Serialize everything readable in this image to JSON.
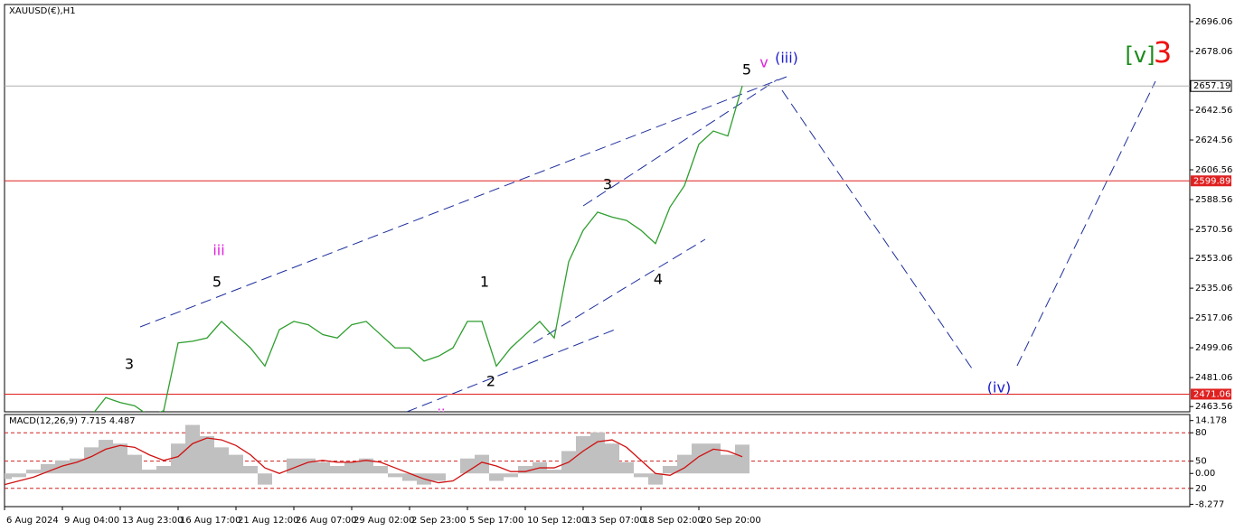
{
  "chart_data": [
    {
      "type": "line",
      "title": "XAUUSD(€),H1",
      "color": "#2e9e2e",
      "categories": [
        "6 Aug 2024",
        null,
        null,
        null,
        "9 Aug 04:00",
        null,
        null,
        null,
        "13 Aug 23:00",
        null,
        null,
        null,
        "16 Aug 17:00",
        null,
        null,
        null,
        "21 Aug 12:00",
        null,
        null,
        null,
        "26 Aug 07:00",
        null,
        null,
        null,
        "29 Aug 02:00",
        null,
        null,
        null,
        "2 Sep 23:00",
        null,
        null,
        null,
        "5 Sep 17:00",
        null,
        null,
        null,
        "10 Sep 12:00",
        null,
        null,
        null,
        "13 Sep 07:00",
        null,
        null,
        null,
        "18 Sep 02:00",
        null,
        null,
        null,
        "20 Sep 20:00",
        null,
        null,
        null
      ],
      "values": [
        2452.7,
        2452,
        2452,
        2455,
        2455,
        2455,
        2458,
        2469,
        2466,
        2464,
        2458,
        2461,
        2502,
        2503,
        2505,
        2515,
        2507,
        2499,
        2488,
        2510,
        2515,
        2513,
        2507,
        2505,
        2513,
        2515,
        2507,
        2499,
        2499,
        2491,
        2494,
        2499,
        2515,
        2515,
        2488,
        2499,
        2507,
        2515,
        2505,
        2551,
        2570,
        2581,
        2578,
        2576,
        2570,
        2562,
        2584,
        2597,
        2622,
        2630,
        2627,
        2657.19
      ],
      "ylim": [
        2460.4,
        2706.4
      ],
      "yticks": [
        2696.06,
        2678.06,
        2642.56,
        2624.56,
        2606.56,
        2588.56,
        2570.56,
        2553.06,
        2535.06,
        2517.06,
        2499.06,
        2481.06,
        2463.56
      ],
      "levels": [
        {
          "value": 2599.89,
          "color": "#e02020"
        },
        {
          "value": 2471.06,
          "color": "#e02020"
        }
      ],
      "last_price": 2657.19,
      "annotations": [
        {
          "text": "3",
          "color": "#000000"
        },
        {
          "text": "5",
          "color": "#000000"
        },
        {
          "text": "iii",
          "color": "#e020e0"
        },
        {
          "text": "1",
          "color": "#000000"
        },
        {
          "text": "2",
          "color": "#000000"
        },
        {
          "text": "3",
          "color": "#000000"
        },
        {
          "text": "4",
          "color": "#000000"
        },
        {
          "text": "5",
          "color": "#000000"
        },
        {
          "text": "v",
          "color": "#e020e0"
        },
        {
          "text": "(iii)",
          "color": "#1a1acc"
        },
        {
          "text": "[v]",
          "color": "#1a8a1a"
        },
        {
          "text": "3",
          "color": "#ee1111"
        },
        {
          "text": "(iv)",
          "color": "#1a1acc"
        },
        {
          "text": "ii",
          "color": "#e020e0"
        }
      ]
    },
    {
      "type": "macd",
      "title": "MACD(12,26,9) 7.715 4.487",
      "series": [
        {
          "name": "MACD",
          "color": "#c0c0c0",
          "values": [
            -1.5,
            -1,
            1,
            2.5,
            3.5,
            4,
            7,
            9,
            8,
            5,
            1,
            2,
            8,
            13,
            10,
            7,
            5,
            2,
            -3,
            0,
            4,
            4,
            3,
            2,
            3,
            4,
            2,
            -1,
            -2,
            -3,
            -2,
            0,
            4,
            5,
            -2,
            -1,
            2,
            3,
            1,
            6,
            10,
            11,
            8,
            3,
            -1,
            -3,
            2,
            5,
            8,
            8,
            5,
            7.715
          ]
        },
        {
          "name": "Signal",
          "color": "#d01010",
          "values": [
            -3,
            -2,
            -1,
            0.5,
            2,
            3,
            4.5,
            6.5,
            7.5,
            7,
            5,
            3.5,
            4.5,
            8,
            9.5,
            9,
            7.5,
            5,
            1.5,
            0,
            1.5,
            3,
            3.5,
            3,
            3,
            3.5,
            3,
            1.5,
            0,
            -1.5,
            -2.5,
            -2,
            0.5,
            3,
            2,
            0.5,
            0.5,
            1.5,
            1.5,
            3,
            6,
            8.5,
            9,
            7,
            3.5,
            0,
            -0.5,
            1.5,
            4.5,
            6.5,
            6,
            4.487
          ]
        }
      ],
      "ylim": [
        -8.9,
        15.8
      ],
      "yticks": [
        14.178,
        {
          "value": 10.9,
          "label": "80"
        },
        {
          "value": 3.3,
          "label": "50"
        },
        {
          "value": 0,
          "label": "0.00"
        },
        {
          "value": -4,
          "label": "20"
        },
        -8.277
      ]
    }
  ]
}
